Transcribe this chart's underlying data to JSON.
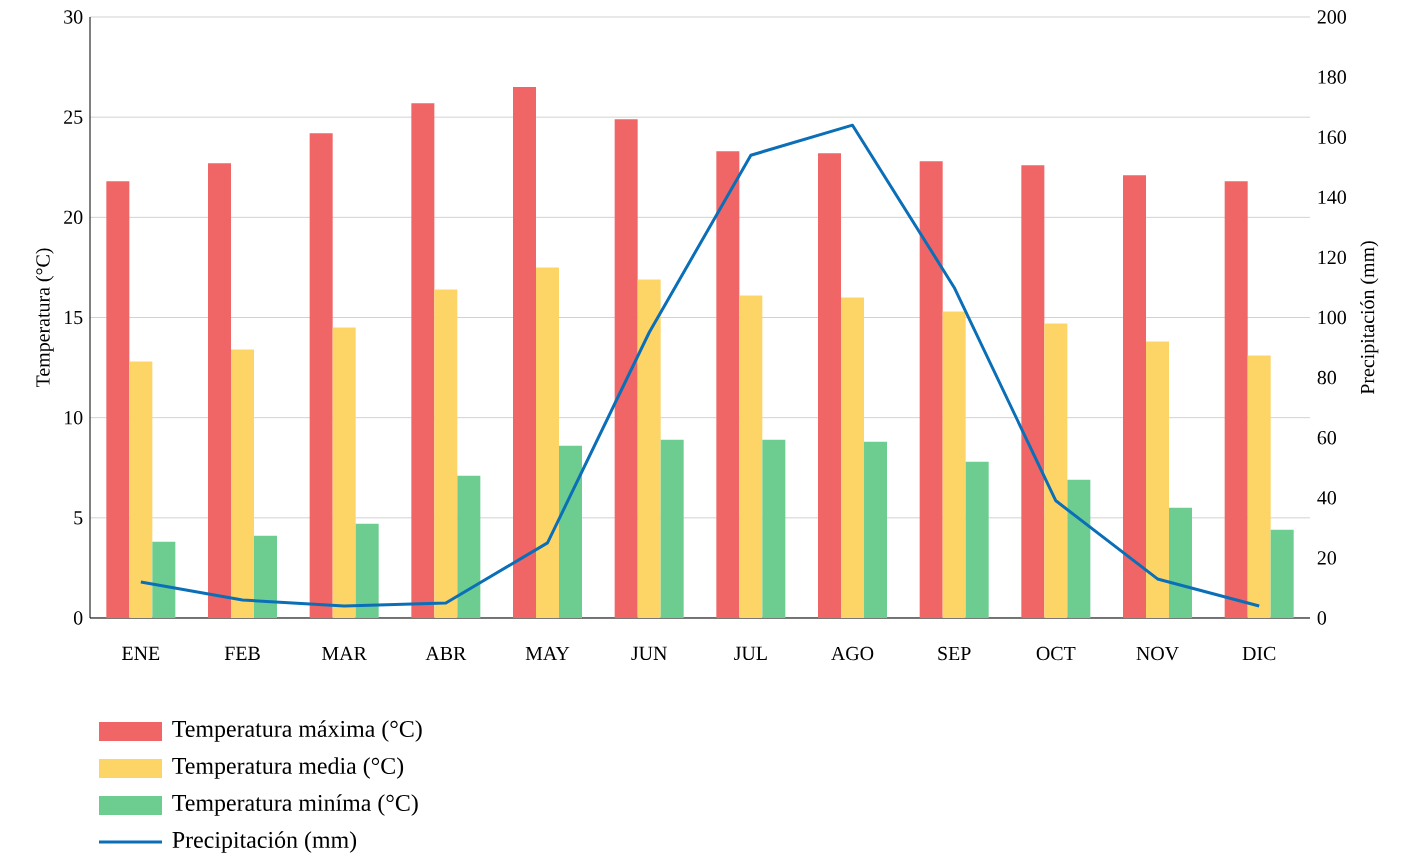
{
  "chart_data": {
    "type": "bar",
    "ylabel": "Temperatura (°C)",
    "y2label": "Precipitación (mm)",
    "categories": [
      "ENE",
      "FEB",
      "MAR",
      "ABR",
      "MAY",
      "JUN",
      "JUL",
      "AGO",
      "SEP",
      "OCT",
      "NOV",
      "DIC"
    ],
    "series": [
      {
        "name": "Temperatura máxima (°C)",
        "color": "#f06565",
        "values": [
          21.8,
          22.7,
          24.2,
          25.7,
          26.5,
          24.9,
          23.3,
          23.2,
          22.8,
          22.6,
          22.1,
          21.8
        ]
      },
      {
        "name": "Temperatura media (°C)",
        "color": "#fdd567",
        "values": [
          12.8,
          13.4,
          14.5,
          16.4,
          17.5,
          16.9,
          16.1,
          16.0,
          15.3,
          14.7,
          13.8,
          13.1
        ]
      },
      {
        "name": "Temperatura miníma (°C)",
        "color": "#6dcd91",
        "values": [
          3.8,
          4.1,
          4.7,
          7.1,
          8.6,
          8.9,
          8.9,
          8.8,
          7.8,
          6.9,
          5.5,
          4.4
        ]
      },
      {
        "name": "Precipitación (mm)",
        "type": "line",
        "axis": "y2",
        "color": "#0b6fb8",
        "values": [
          12,
          6,
          4,
          5,
          25,
          95,
          154,
          164,
          110,
          39,
          13,
          4
        ]
      }
    ],
    "ylim": [
      0,
      30
    ],
    "yticks": [
      0,
      5,
      10,
      15,
      20,
      25,
      30
    ],
    "y2lim": [
      0,
      200
    ],
    "y2ticks": [
      0,
      20,
      40,
      60,
      80,
      100,
      120,
      140,
      160,
      180,
      200
    ],
    "grid": "y",
    "legend": "bottom left"
  }
}
